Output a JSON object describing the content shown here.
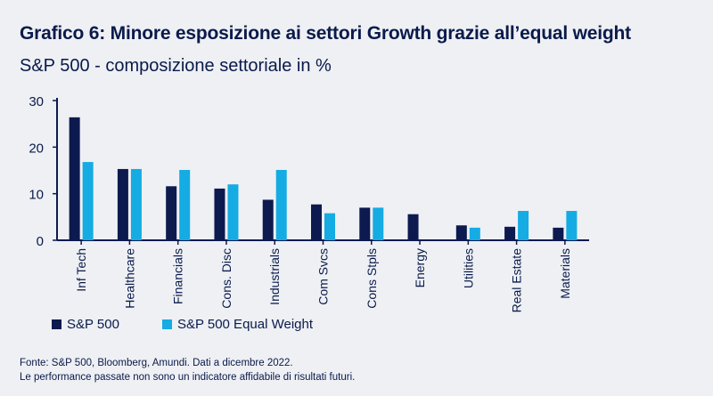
{
  "title": "Grafico 6: Minore esposizione ai settori Growth grazie all’equal weight",
  "subtitle": "S&P 500 - composizione settoriale in %",
  "footer": {
    "line1": "Fonte: S&P 500, Bloomberg, Amundi. Dati a dicembre 2022.",
    "line2": "Le performance passate non sono un indicatore affidabile di risultati futuri."
  },
  "colors": {
    "sp500": "#0d1a4f",
    "equal_weight": "#15abe3",
    "axis": "#0d1a4f"
  },
  "chart_data": {
    "type": "bar",
    "categories": [
      "Inf Tech",
      "Healthcare",
      "Financials",
      "Cons. Disc",
      "Industrials",
      "Com Svcs",
      "Cons Stpls",
      "Energy",
      "Utilities",
      "Real Estate",
      "Materials"
    ],
    "series": [
      {
        "name": "S&P 500",
        "values": [
          26.4,
          15.3,
          11.6,
          11.1,
          8.7,
          7.7,
          7.0,
          5.6,
          3.2,
          2.9,
          2.7
        ]
      },
      {
        "name": "S&P 500 Equal Weight",
        "values": [
          16.8,
          15.3,
          15.1,
          12.0,
          15.1,
          5.8,
          7.0,
          0,
          2.7,
          6.3,
          6.3
        ]
      }
    ],
    "yticks": [
      0,
      10,
      20,
      30
    ],
    "ylim": [
      0,
      30
    ],
    "legend_position": "bottom-left",
    "grid": false
  }
}
